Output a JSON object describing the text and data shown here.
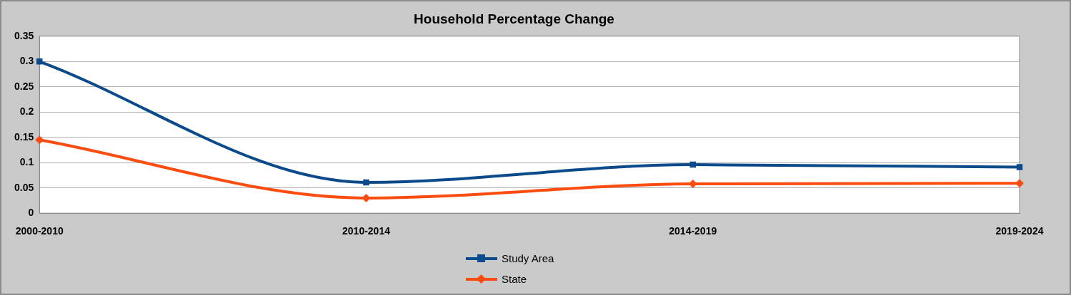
{
  "chart_data": {
    "type": "line",
    "title": "Household Percentage Change",
    "categories": [
      "2000-2010",
      "2010-2014",
      "2014-2019",
      "2019-2024"
    ],
    "series": [
      {
        "name": "Study Area",
        "color": "#0b4a8b",
        "marker": "square",
        "values": [
          0.3,
          0.061,
          0.096,
          0.091
        ]
      },
      {
        "name": "State",
        "color": "#fc4c10",
        "marker": "diamond",
        "values": [
          0.145,
          0.03,
          0.058,
          0.059
        ]
      }
    ],
    "ylim": [
      0,
      0.35
    ],
    "yticks": [
      0,
      0.05,
      0.1,
      0.15,
      0.2,
      0.25,
      0.3,
      0.35
    ],
    "grid": "y",
    "legend": "bottom"
  }
}
